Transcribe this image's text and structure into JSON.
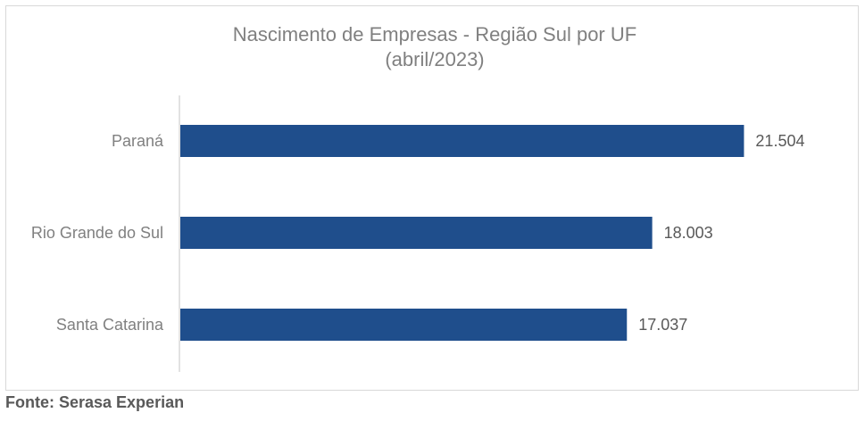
{
  "chart_data": {
    "type": "bar",
    "orientation": "horizontal",
    "title": "Nascimento de Empresas  - Região Sul por UF",
    "subtitle": "(abril/2023)",
    "categories": [
      "Paraná",
      "Rio Grande do Sul",
      "Santa Catarina"
    ],
    "values": [
      21504,
      18003,
      17037
    ],
    "value_labels": [
      "21.504",
      "18.003",
      "17.037"
    ],
    "xlim": [
      0,
      22000
    ],
    "grid": false,
    "legend": "none",
    "bar_color": "#1f4e8c"
  },
  "footer": {
    "source": "Fonte: Serasa Experian"
  }
}
